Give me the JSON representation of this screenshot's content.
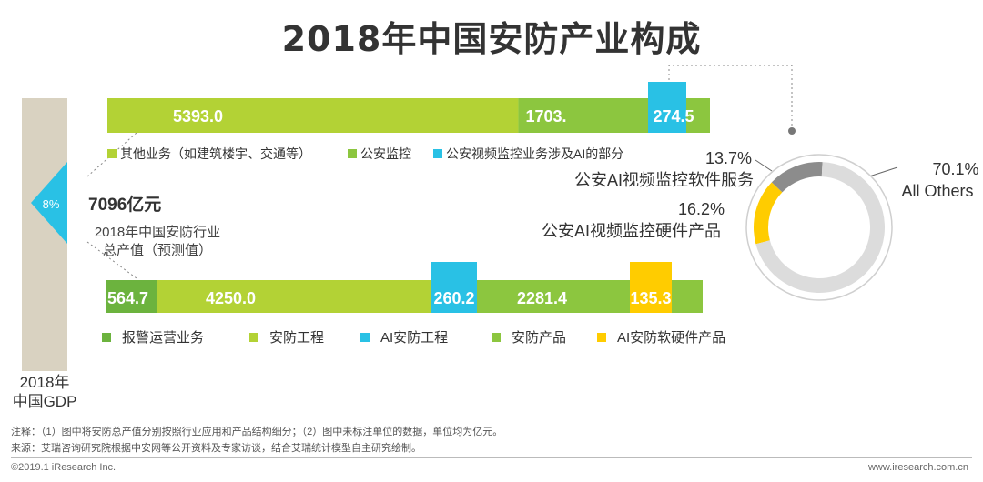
{
  "title": "2018年中国安防产业构成",
  "left": {
    "gdp_label": "2018年\n中国GDP",
    "share_label": "8%",
    "total_value": "7096亿元",
    "total_desc": "2018年中国安防行业\n总产值（预测值）"
  },
  "colors": {
    "green_dark": "#6cb33e",
    "green_mid": "#8cc63f",
    "green_light": "#b3d235",
    "cyan": "#29c1e5",
    "yellow": "#ffcc00",
    "beige": "#d9d2c1",
    "gray": "#8c8c8c",
    "lightgray": "#dcdcdc"
  },
  "chart_data": [
    {
      "type": "bar",
      "orientation": "horizontal-stacked",
      "series": [
        {
          "name": "其他业务（如建筑楼宇、交通等）",
          "values": [
            5393.0
          ],
          "label": "5393.0",
          "color": "#b3d235"
        },
        {
          "name": "公安监控",
          "values": [
            1703.0
          ],
          "label": "1703.",
          "color": "#8cc63f"
        },
        {
          "name": "公安视频监控业务涉及AI的部分",
          "values": [
            274.5
          ],
          "label": "274.5",
          "color": "#29c1e5"
        }
      ]
    },
    {
      "type": "bar",
      "orientation": "horizontal-stacked",
      "series": [
        {
          "name": "报警运营业务",
          "values": [
            564.7
          ],
          "label": "564.7",
          "color": "#6cb33e"
        },
        {
          "name": "安防工程",
          "values": [
            4250.0
          ],
          "label": "4250.0",
          "color": "#b3d235"
        },
        {
          "name": "AI安防工程",
          "values": [
            260.2
          ],
          "label": "260.2",
          "color": "#29c1e5"
        },
        {
          "name": "安防产品",
          "values": [
            2281.4
          ],
          "label": "2281.4",
          "color": "#8cc63f"
        },
        {
          "name": "AI安防软硬件产品",
          "values": [
            135.3
          ],
          "label": "135.3",
          "color": "#ffcc00"
        }
      ]
    },
    {
      "type": "pie",
      "slices": [
        {
          "name": "公安AI视频监控软件服务",
          "value": 13.7,
          "label": "13.7%",
          "color": "#8c8c8c"
        },
        {
          "name": "公安AI视频监控硬件产品",
          "value": 16.2,
          "label": "16.2%",
          "color": "#ffcc00"
        },
        {
          "name": "All Others",
          "value": 70.1,
          "label": "70.1%",
          "color": "#dcdcdc"
        }
      ]
    }
  ],
  "notes": {
    "note_line": "注释：（1）图中将安防总产值分别按照行业应用和产品结构细分；（2）图中未标注单位的数据，单位均为亿元。",
    "source_line": "来源：艾瑞咨询研究院根据中安网等公开资料及专家访谈，结合艾瑞统计模型自主研究绘制。"
  },
  "footer": {
    "left": "©2019.1 iResearch Inc.",
    "right": "www.iresearch.com.cn"
  }
}
